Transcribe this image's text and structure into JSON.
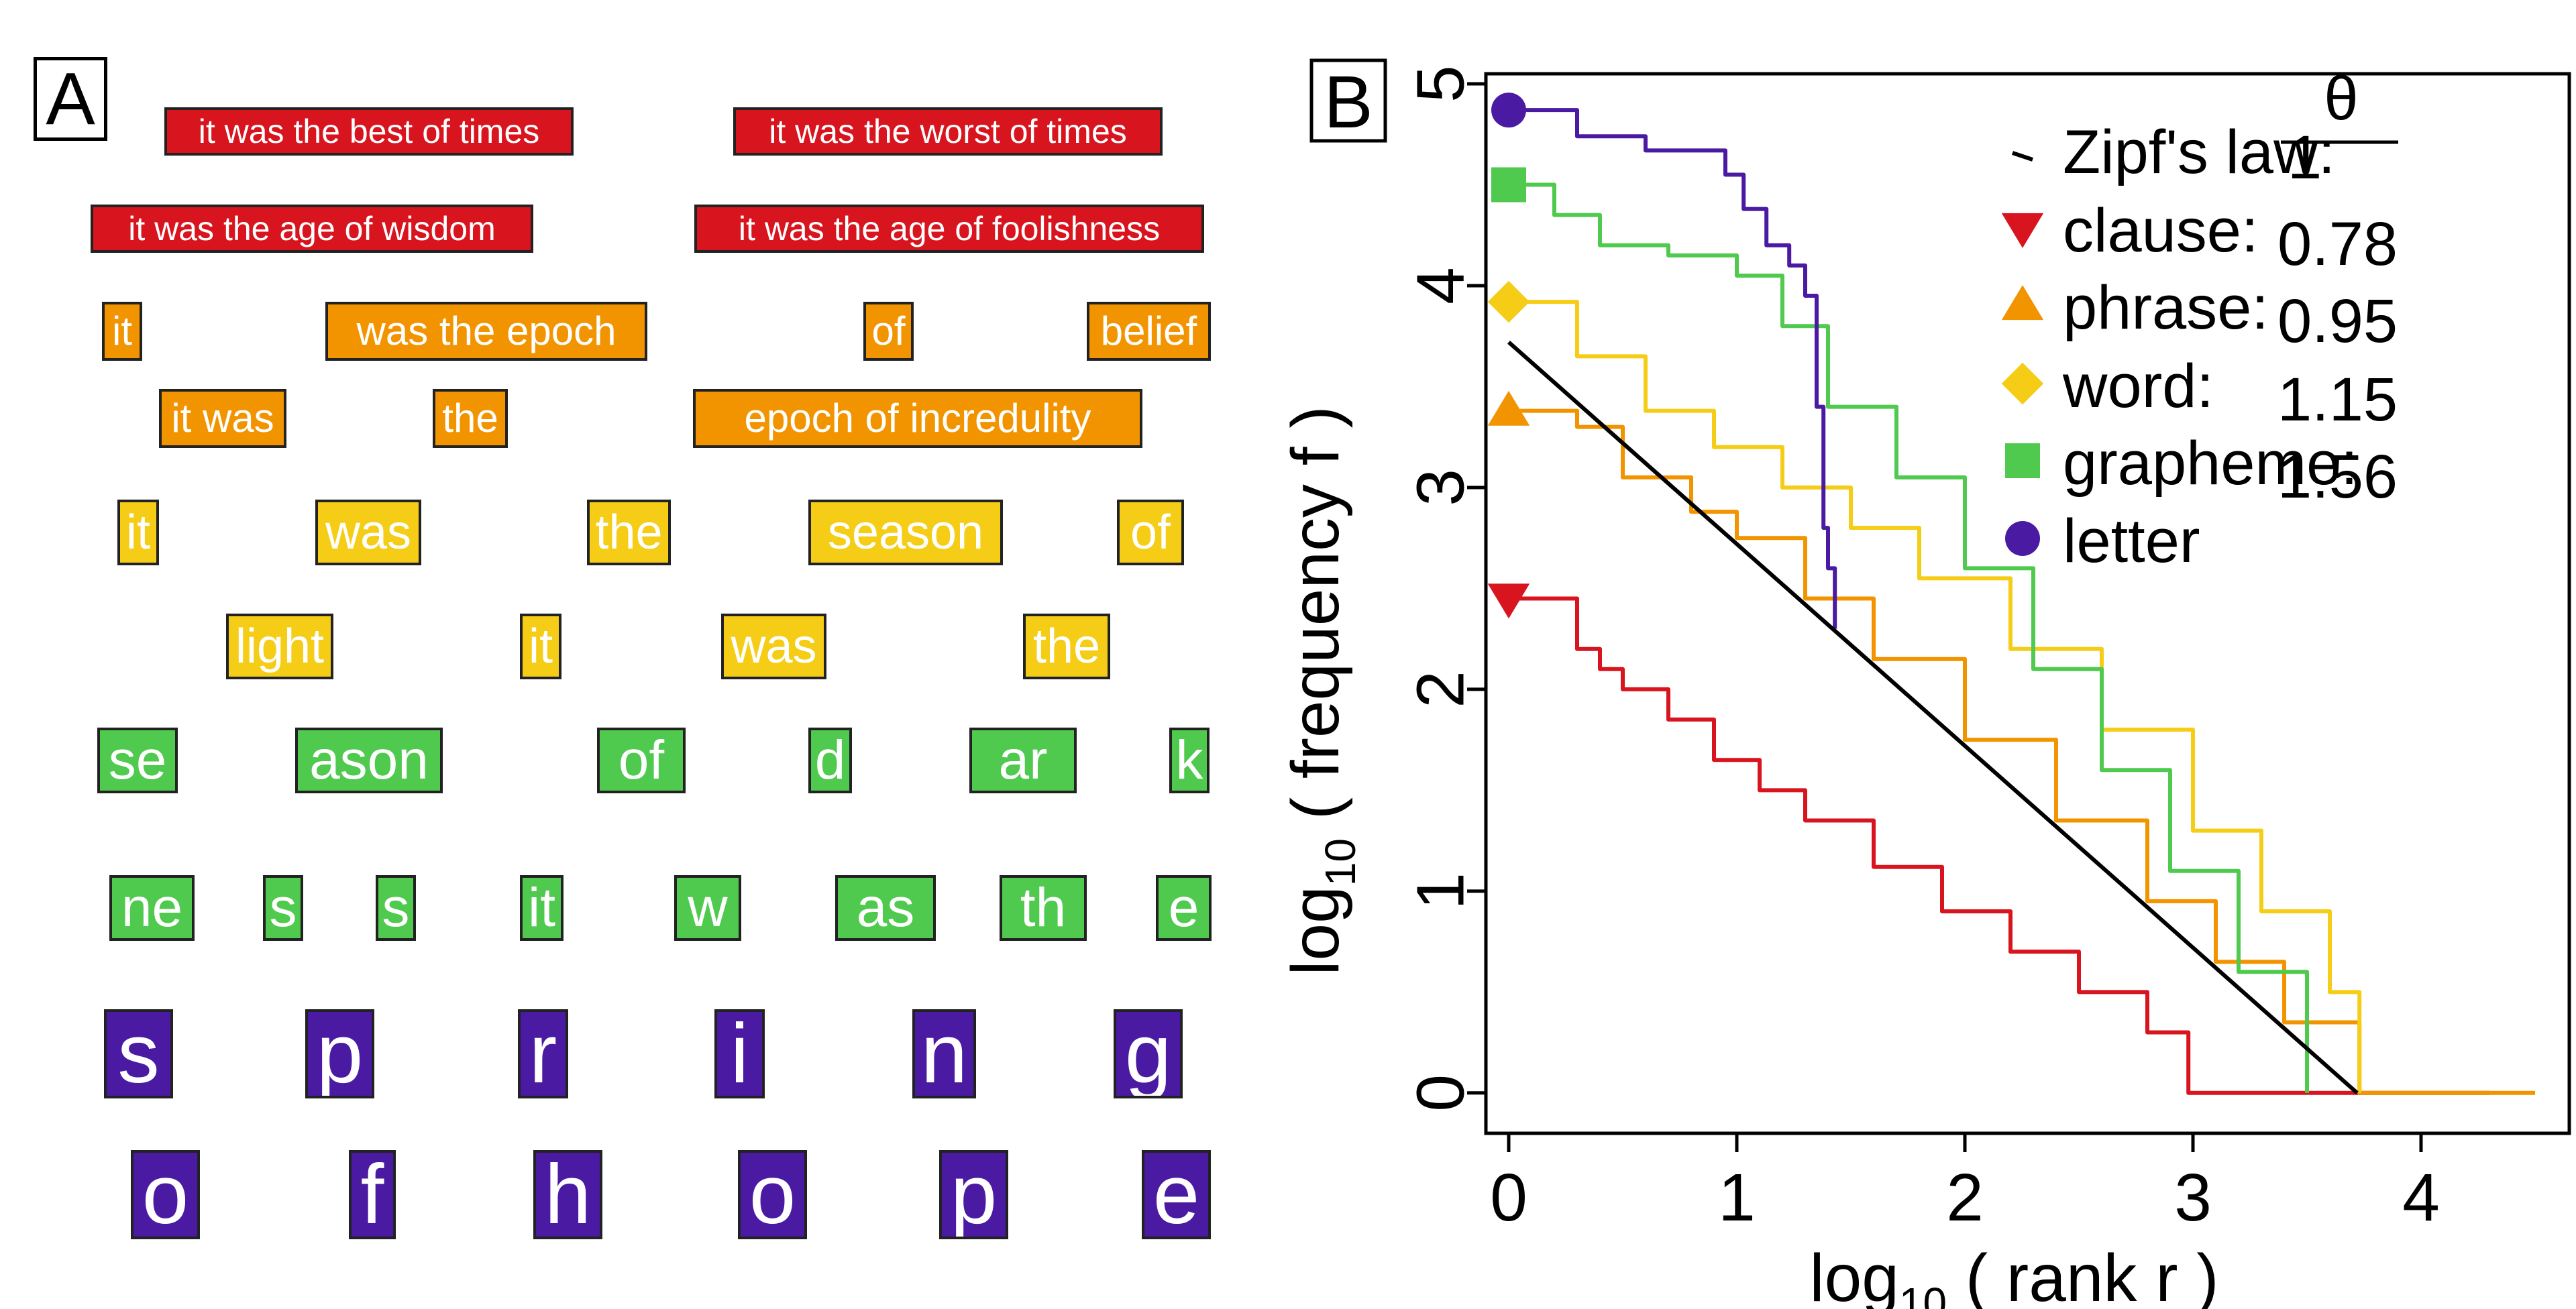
{
  "panel_a": {
    "label": "A",
    "colors": {
      "clause": "#d8141e",
      "phrase": "#f29400",
      "word": "#f5cd16",
      "grapheme": "#4fca4e",
      "letter": "#4a1aa2"
    },
    "rows": [
      {
        "level": "clause",
        "tokens": [
          "it was the best of times",
          "it was the worst of times"
        ]
      },
      {
        "level": "clause",
        "tokens": [
          "it was the age of wisdom",
          "it was the age of foolishness"
        ]
      },
      {
        "level": "phrase",
        "tokens": [
          "it",
          "was the epoch",
          "of",
          "belief"
        ]
      },
      {
        "level": "phrase",
        "tokens": [
          "it was",
          "the",
          "epoch of incredulity"
        ]
      },
      {
        "level": "word",
        "tokens": [
          "it",
          "was",
          "the",
          "season",
          "of"
        ]
      },
      {
        "level": "word",
        "tokens": [
          "light",
          "it",
          "was",
          "the"
        ]
      },
      {
        "level": "grapheme",
        "tokens": [
          "se",
          "ason",
          "of",
          "d",
          "ar",
          "k"
        ]
      },
      {
        "level": "grapheme",
        "tokens": [
          "ne",
          "s",
          "s",
          "it",
          "w",
          "as",
          "th",
          "e"
        ]
      },
      {
        "level": "letter",
        "tokens": [
          "s",
          "p",
          "r",
          "i",
          "n",
          "g"
        ]
      },
      {
        "level": "letter",
        "tokens": [
          "o",
          "f",
          "h",
          "o",
          "p",
          "e"
        ]
      }
    ]
  },
  "chart_data": {
    "panel_label": "B",
    "type": "line",
    "xlabel": {
      "prefix": "log",
      "sub": "10",
      "suffix": " ( rank r )"
    },
    "ylabel": {
      "prefix": "log",
      "sub": "10",
      "suffix": " ( frequency f )"
    },
    "xlim": [
      -0.1,
      4.65
    ],
    "ylim": [
      -0.2,
      5.05
    ],
    "xticks": [
      0,
      1,
      2,
      3,
      4
    ],
    "yticks": [
      0,
      1,
      2,
      3,
      4,
      5
    ],
    "grid": false,
    "legend_position": "top-right",
    "legend_header": {
      "theta_symbol": "θ",
      "theta_label": "θ"
    },
    "series": [
      {
        "name": "Zipf's law:",
        "theta": "1",
        "color": "#000000",
        "marker": "line",
        "x": [
          0,
          3.72
        ],
        "y": [
          3.72,
          0
        ]
      },
      {
        "name": "clause:",
        "theta": "0.78",
        "color": "#d8141e",
        "marker": "triangle-down",
        "x": [
          0,
          0.3,
          0.4,
          0.5,
          0.7,
          0.9,
          1.1,
          1.3,
          1.6,
          1.9,
          2.2,
          2.5,
          2.8,
          2.98,
          2.98,
          4.3
        ],
        "y": [
          2.45,
          2.2,
          2.1,
          2.0,
          1.85,
          1.65,
          1.5,
          1.35,
          1.12,
          0.9,
          0.7,
          0.5,
          0.3,
          0.2,
          0,
          0
        ]
      },
      {
        "name": "phrase:",
        "theta": "0.95",
        "color": "#f29400",
        "marker": "triangle-up",
        "x": [
          0,
          0.3,
          0.5,
          0.8,
          1.0,
          1.3,
          1.6,
          2.0,
          2.4,
          2.8,
          3.1,
          3.4,
          3.73,
          3.73,
          4.5
        ],
        "y": [
          3.38,
          3.3,
          3.05,
          2.88,
          2.75,
          2.45,
          2.15,
          1.75,
          1.35,
          0.95,
          0.65,
          0.35,
          0.3,
          0,
          0
        ]
      },
      {
        "name": "word:",
        "theta": "1.15",
        "color": "#f5cd16",
        "marker": "diamond",
        "x": [
          0,
          0.3,
          0.6,
          0.9,
          1.2,
          1.5,
          1.8,
          2.2,
          2.6,
          3.0,
          3.3,
          3.6,
          3.73,
          3.73
        ],
        "y": [
          3.92,
          3.65,
          3.38,
          3.2,
          3.0,
          2.8,
          2.55,
          2.2,
          1.8,
          1.3,
          0.9,
          0.5,
          0.3,
          0
        ]
      },
      {
        "name": "grapheme:",
        "theta": "1.56",
        "color": "#4fca4e",
        "marker": "square",
        "x": [
          0,
          0.2,
          0.4,
          0.7,
          1.0,
          1.2,
          1.4,
          1.7,
          2.0,
          2.3,
          2.6,
          2.9,
          3.2,
          3.5,
          3.5
        ],
        "y": [
          4.5,
          4.35,
          4.2,
          4.15,
          4.05,
          3.8,
          3.4,
          3.05,
          2.6,
          2.1,
          1.6,
          1.1,
          0.6,
          0.2,
          0
        ]
      },
      {
        "name": "letter",
        "theta": "",
        "color": "#4a1aa2",
        "marker": "circle",
        "x": [
          0,
          0.3,
          0.6,
          0.95,
          1.03,
          1.13,
          1.23,
          1.3,
          1.35,
          1.38,
          1.4,
          1.43
        ],
        "y": [
          4.87,
          4.74,
          4.67,
          4.55,
          4.38,
          4.2,
          4.1,
          3.95,
          3.4,
          2.8,
          2.6,
          2.3
        ]
      }
    ]
  }
}
